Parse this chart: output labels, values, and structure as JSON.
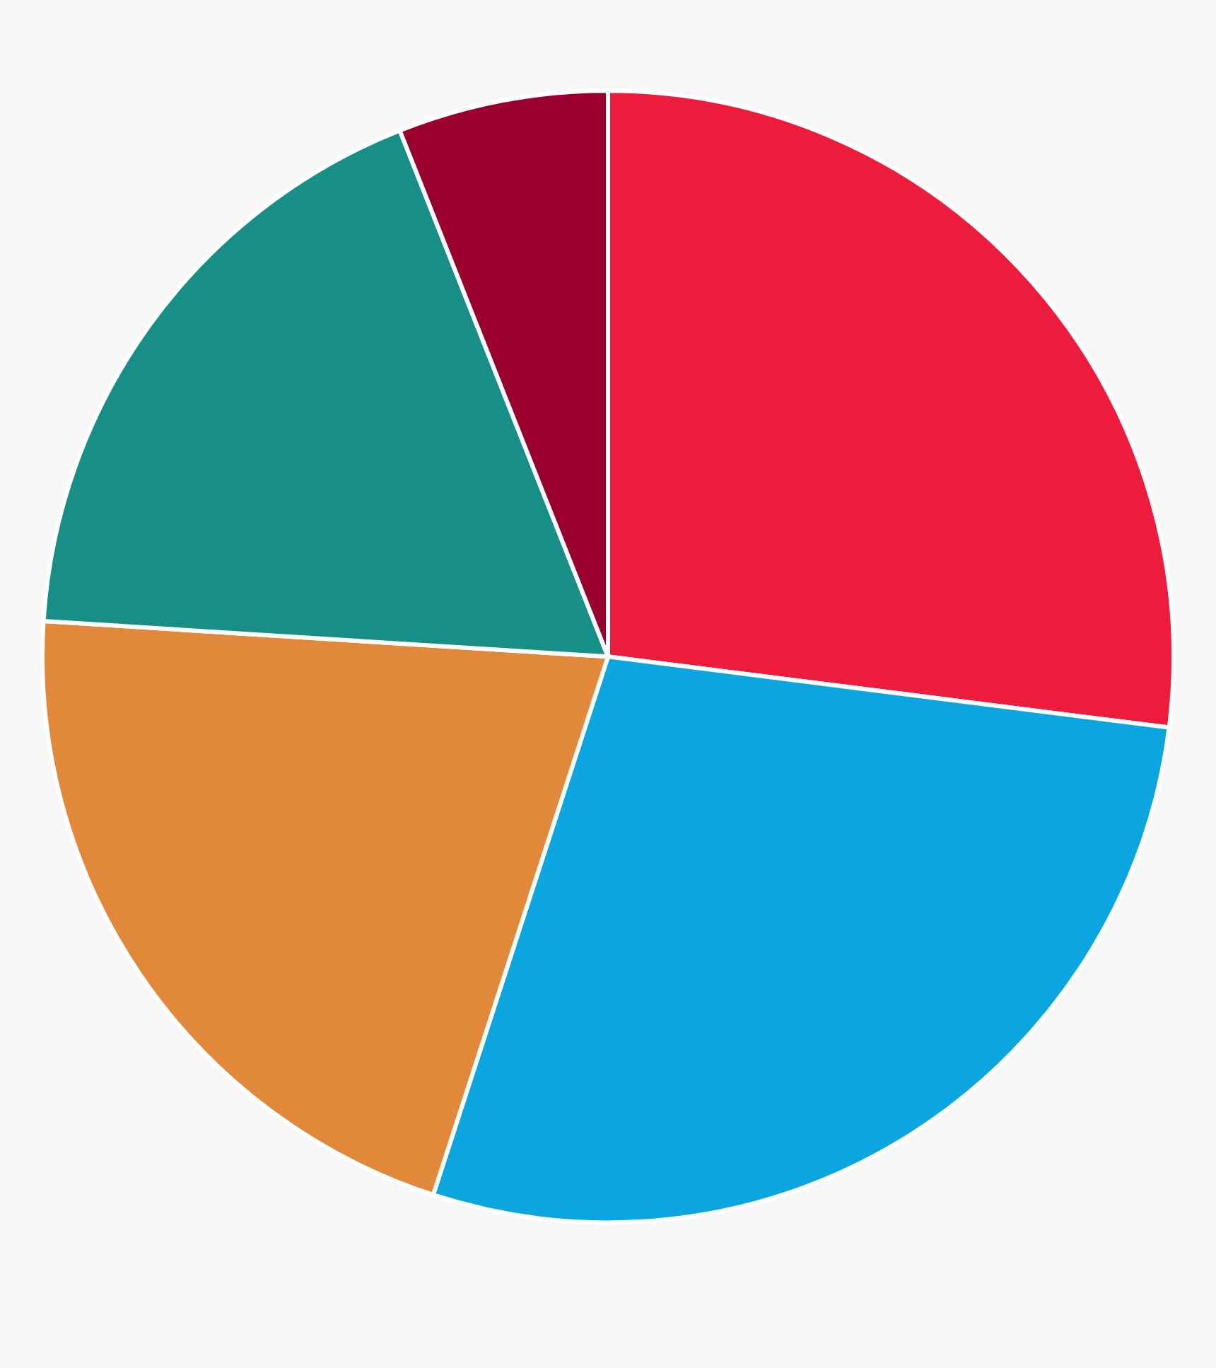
{
  "chart_data": {
    "type": "pie",
    "categories": [
      null,
      null,
      null,
      null,
      null
    ],
    "values": [
      27,
      28,
      21,
      18,
      6
    ],
    "colors": [
      "#ee1c3c",
      "#0ba6df",
      "#e2883a",
      "#178f86",
      "#990030"
    ]
  }
}
